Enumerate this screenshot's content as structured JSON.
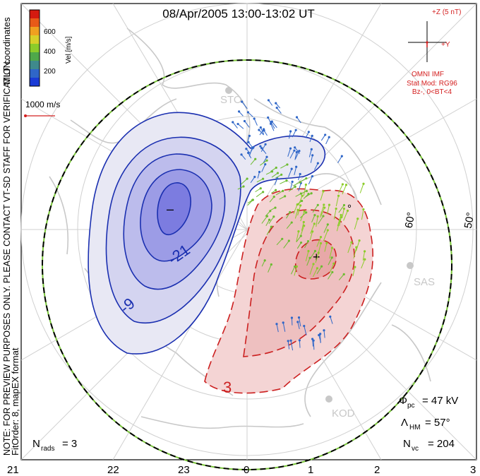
{
  "title": "08/Apr/2005 13:00-13:02 UT",
  "side_notes": {
    "coords": "MLT coordinates",
    "verification": "NOTE: FOR PREVIEW PURPOSES ONLY. PLEASE CONTACT VT-SD STAFF FOR VERIFICATION.",
    "fit": "FitOrder: 8, mapEX format"
  },
  "colorbar": {
    "label": "Vel [m/s]",
    "ticks": [
      "600",
      "400",
      "200"
    ],
    "colors": [
      "#1a3bd6",
      "#2f66c8",
      "#3f8a8c",
      "#4fa84a",
      "#8ccc2a",
      "#d8d02a",
      "#f0a020",
      "#e85a18",
      "#d41a10"
    ]
  },
  "ref_vector": {
    "label": "1000 m/s",
    "color": "#d42020"
  },
  "imf": {
    "z_label": "+Z (5 nT)",
    "y_label": "+Y",
    "model_lines": [
      "OMNI IMF",
      "Stat Mod: RG96",
      "Bz-, 0<BT<4"
    ],
    "color": "#d42020"
  },
  "stats": {
    "phi_pc_sym": "Φ",
    "phi_pc_sub": "pc",
    "phi_pc_val": "= 47 kV",
    "lambda_sym": "Λ",
    "lambda_sub": "HM",
    "lambda_val": "= 57°",
    "nvc_sym": "N",
    "nvc_sub": "vc",
    "nvc_val": "= 204",
    "nrads_sym": "N",
    "nrads_sub": "rads",
    "nrads_val": "= 3"
  },
  "lat_labels": [
    "60°",
    "50°",
    "°"
  ],
  "stations": [
    "STO",
    "SAS",
    "KOD"
  ],
  "mlt_axis": [
    "21",
    "22",
    "23",
    "0",
    "1",
    "2",
    "3"
  ],
  "contour_labels": {
    "neg": [
      "-21",
      "-9",
      "–"
    ],
    "pos": [
      "3",
      "+"
    ]
  },
  "chart_data": {
    "type": "polar convection map",
    "negative_cell_contours_kV": [
      -3,
      -9,
      -15,
      -21,
      -27
    ],
    "positive_cell_contours_kV": [
      3,
      9,
      15
    ],
    "cross_polar_cap_potential_kV": 47,
    "heppner_maynard_boundary_lat_deg": 57,
    "num_vectors": 204,
    "num_radars": 3,
    "negative_color": "#1a2fb0",
    "positive_color": "#cc2020"
  }
}
